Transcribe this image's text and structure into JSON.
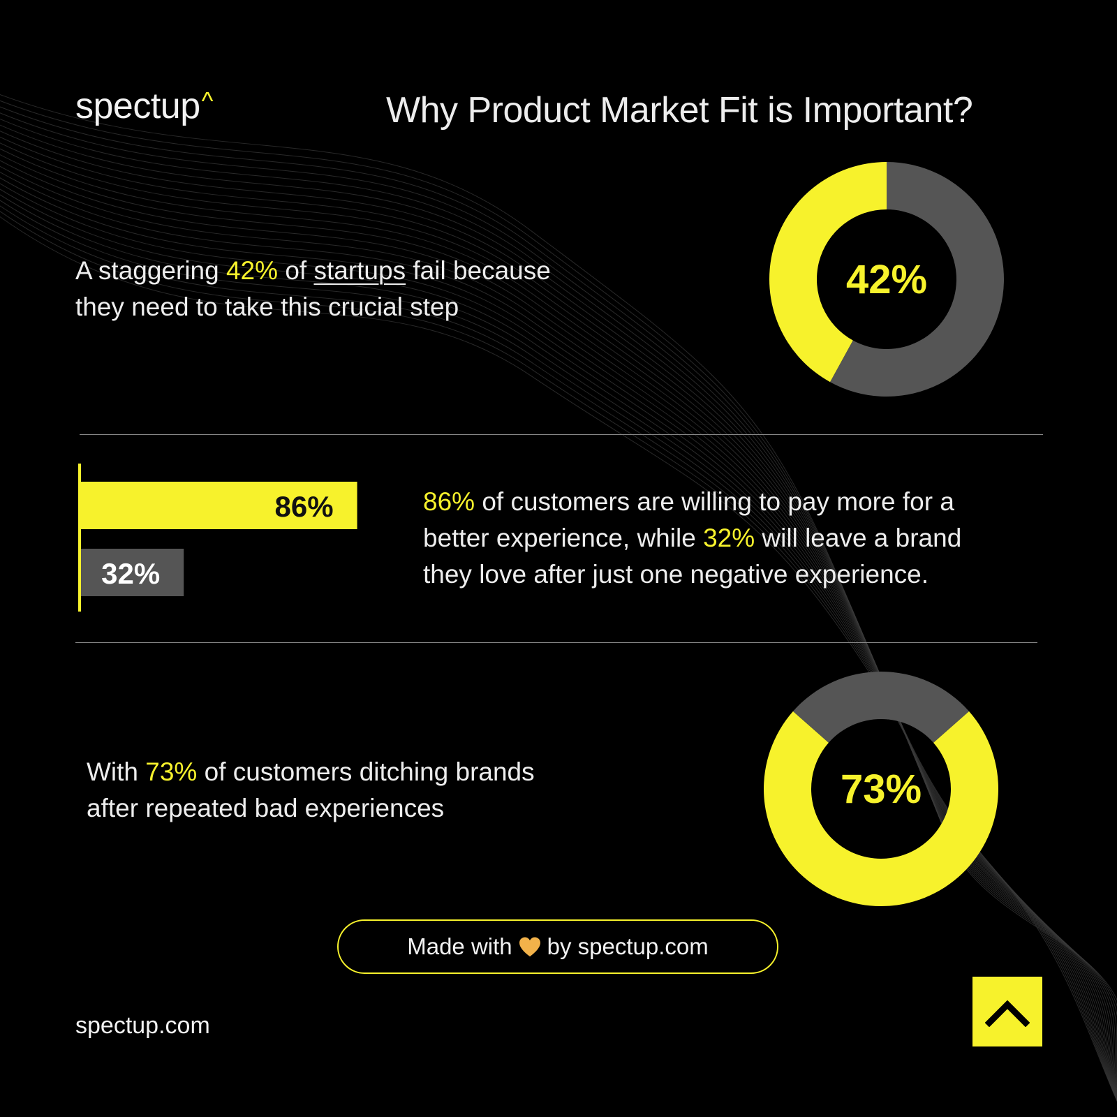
{
  "header": {
    "logo_text": "spectup",
    "logo_mark": "^",
    "title": "Why Product Market Fit is Important?"
  },
  "section1": {
    "text_pre": "A staggering ",
    "text_hl": "42%",
    "text_mid": " of ",
    "text_link": "startups",
    "text_post_line1": " fail because",
    "text_line2": "they need to take this crucial step"
  },
  "section2": {
    "line1_hl": "86%",
    "line1_rest": " of customers are willing to pay more for a",
    "line2_pre": "better experience, while ",
    "line2_hl": "32%",
    "line2_post": " will leave a brand",
    "line3": "they love after just one negative experience."
  },
  "section3": {
    "line1_pre": "With ",
    "line1_hl": "73%",
    "line1_post": " of customers ditching brands",
    "line2": "after repeated bad experiences"
  },
  "badge": {
    "before": "Made with",
    "after": "by spectup.com",
    "icon": "heart-icon"
  },
  "footer": {
    "url": "spectup.com"
  },
  "up_button": {
    "icon": "chevron-up-icon"
  },
  "colors": {
    "accent": "#f7f22c",
    "muted": "#555555",
    "background": "#000000",
    "text": "#ededed",
    "heart": "#f2b24a"
  },
  "chart_data": [
    {
      "type": "pie",
      "variant": "donut",
      "values": [
        42,
        58
      ],
      "center_label": "42%"
    },
    {
      "type": "bar",
      "orientation": "horizontal",
      "categories": [
        "86%",
        "32%"
      ],
      "values": [
        86,
        32
      ],
      "data_labels": [
        "86%",
        "32%"
      ],
      "xlim": [
        0,
        100
      ]
    },
    {
      "type": "pie",
      "variant": "donut",
      "values": [
        73,
        27
      ],
      "center_label": "73%"
    }
  ]
}
